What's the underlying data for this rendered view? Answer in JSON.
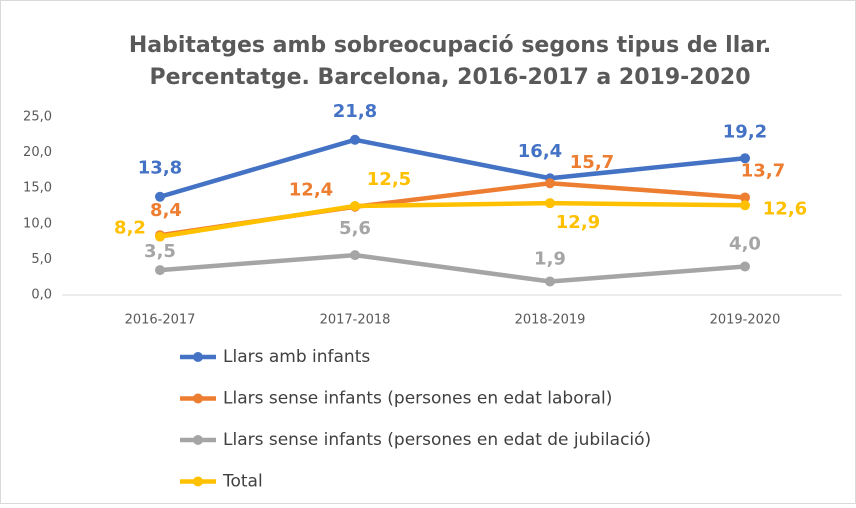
{
  "chart_data": {
    "type": "line",
    "title": [
      "Habitatges amb sobreocupació segons tipus de llar.",
      "Percentatge. Barcelona, 2016-2017 a 2019-2020"
    ],
    "categories": [
      "2016-2017",
      "2017-2018",
      "2018-2019",
      "2019-2020"
    ],
    "series": [
      {
        "name": "Llars amb infants",
        "color": "#4472c4",
        "values": [
          13.8,
          21.8,
          16.4,
          19.2
        ],
        "value_labels": [
          "13,8",
          "21,8",
          "16,4",
          "19,2"
        ]
      },
      {
        "name": "Llars sense infants (persones en edat laboral)",
        "color": "#ed7d31",
        "values": [
          8.4,
          12.4,
          15.7,
          13.7
        ],
        "value_labels": [
          "8,4",
          "12,4",
          "15,7",
          "13,7"
        ]
      },
      {
        "name": "Llars sense infants (persones en edat de jubilació)",
        "color": "#a5a5a5",
        "values": [
          3.5,
          5.6,
          1.9,
          4.0
        ],
        "value_labels": [
          "3,5",
          "5,6",
          "1,9",
          "4,0"
        ]
      },
      {
        "name": "Total",
        "color": "#ffc000",
        "values": [
          8.2,
          12.5,
          12.9,
          12.6
        ],
        "value_labels": [
          "8,2",
          "12,5",
          "12,9",
          "12,6"
        ]
      }
    ],
    "ylim": [
      0,
      25
    ],
    "yticks": [
      {
        "value": 0,
        "label": "0,0"
      },
      {
        "value": 5,
        "label": "5,0"
      },
      {
        "value": 10,
        "label": "10,0"
      },
      {
        "value": 15,
        "label": "15,0"
      },
      {
        "value": 20,
        "label": "20,0"
      },
      {
        "value": 25,
        "label": "25,0"
      }
    ],
    "legend": "bottom"
  }
}
